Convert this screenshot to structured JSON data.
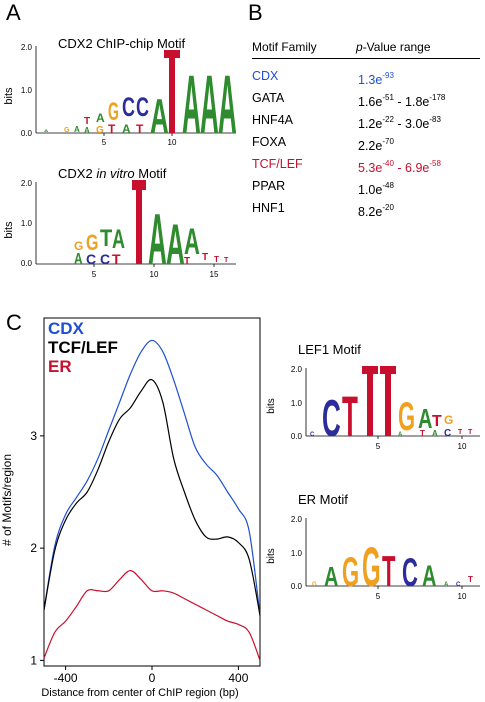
{
  "panels": {
    "a": "A",
    "b": "B",
    "c": "C"
  },
  "logo_cdx2_chip": {
    "title": "CDX2 ChIP-chip Motif",
    "ylabel": "bits",
    "yticks": [
      "2.0",
      "1.0",
      "0.0"
    ],
    "xticks": [
      "5",
      "10"
    ]
  },
  "logo_cdx2_vitro": {
    "title_prefix": "CDX2",
    "title_italic": "in vitro",
    "title_suffix": "Motif",
    "ylabel": "bits",
    "yticks": [
      "2.0",
      "1.0",
      "0.0"
    ],
    "xticks": [
      "5",
      "10",
      "15"
    ]
  },
  "logo_lef1": {
    "title": "LEF1 Motif",
    "ylabel": "bits",
    "yticks": [
      "2.0",
      "1.0",
      "0.0"
    ],
    "xticks": [
      "5",
      "10"
    ]
  },
  "logo_er": {
    "title": "ER Motif",
    "ylabel": "bits",
    "yticks": [
      "2.0",
      "1.0",
      "0.0"
    ],
    "xticks": [
      "5",
      "10"
    ]
  },
  "table": {
    "col1": "Motif Family",
    "col2_italic": "p",
    "col2_rest": "-Value range",
    "rows": [
      {
        "family": "CDX",
        "v1": "1.3e",
        "e1": "-93",
        "v2": "",
        "e2": "",
        "color": "#1f4fd1"
      },
      {
        "family": "GATA",
        "v1": "1.6e",
        "e1": "-51",
        "v2": " - 1.8e",
        "e2": "-178",
        "color": "#000000"
      },
      {
        "family": "HNF4A",
        "v1": "1.2e",
        "e1": "-22",
        "v2": " - 3.0e",
        "e2": "-83",
        "color": "#000000"
      },
      {
        "family": "FOXA",
        "v1": "2.2e",
        "e1": "-70",
        "v2": "",
        "e2": "",
        "color": "#000000"
      },
      {
        "family": "TCF/LEF",
        "v1": "5.3e",
        "e1": "-40",
        "v2": " - 6.9e",
        "e2": "-58",
        "color": "#c8102e"
      },
      {
        "family": "PPAR",
        "v1": "1.0e",
        "e1": "-48",
        "v2": "",
        "e2": "",
        "color": "#000000"
      },
      {
        "family": "HNF1",
        "v1": "8.2e",
        "e1": "-20",
        "v2": "",
        "e2": "",
        "color": "#000000"
      }
    ]
  },
  "chart_data": {
    "type": "line",
    "xlabel": "Distance from center of ChIP region (bp)",
    "ylabel": "# of Motifs/region",
    "xlim": [
      -500,
      500
    ],
    "ylim": [
      0.95,
      4.05
    ],
    "xticks": [
      -400,
      0,
      400
    ],
    "yticks": [
      1,
      2,
      3
    ],
    "legend_position": "top-left",
    "series": [
      {
        "name": "CDX",
        "color": "#1f4fd1",
        "x": [
          -500,
          -450,
          -400,
          -350,
          -300,
          -250,
          -200,
          -150,
          -100,
          -50,
          0,
          50,
          100,
          150,
          200,
          250,
          300,
          350,
          400,
          450,
          500
        ],
        "y": [
          1.45,
          2.02,
          2.3,
          2.45,
          2.6,
          2.8,
          3.05,
          3.3,
          3.55,
          3.75,
          3.85,
          3.75,
          3.5,
          3.2,
          2.9,
          2.75,
          2.65,
          2.5,
          2.35,
          2.15,
          1.4
        ]
      },
      {
        "name": "TCF/LEF",
        "color": "#000000",
        "x": [
          -500,
          -450,
          -400,
          -350,
          -300,
          -250,
          -200,
          -150,
          -100,
          -50,
          0,
          50,
          100,
          150,
          200,
          250,
          300,
          350,
          400,
          450,
          500
        ],
        "y": [
          1.45,
          1.98,
          2.25,
          2.4,
          2.5,
          2.7,
          2.95,
          3.15,
          3.25,
          3.4,
          3.5,
          3.3,
          2.8,
          2.5,
          2.25,
          2.1,
          2.08,
          2.1,
          2.05,
          1.9,
          1.4
        ]
      },
      {
        "name": "ER",
        "color": "#c8102e",
        "x": [
          -500,
          -450,
          -400,
          -350,
          -300,
          -250,
          -200,
          -150,
          -100,
          -50,
          0,
          50,
          100,
          150,
          200,
          250,
          300,
          350,
          400,
          450,
          500
        ],
        "y": [
          1.02,
          1.25,
          1.35,
          1.48,
          1.62,
          1.62,
          1.62,
          1.72,
          1.8,
          1.72,
          1.62,
          1.62,
          1.6,
          1.55,
          1.5,
          1.45,
          1.4,
          1.35,
          1.32,
          1.25,
          1.0
        ]
      }
    ]
  }
}
